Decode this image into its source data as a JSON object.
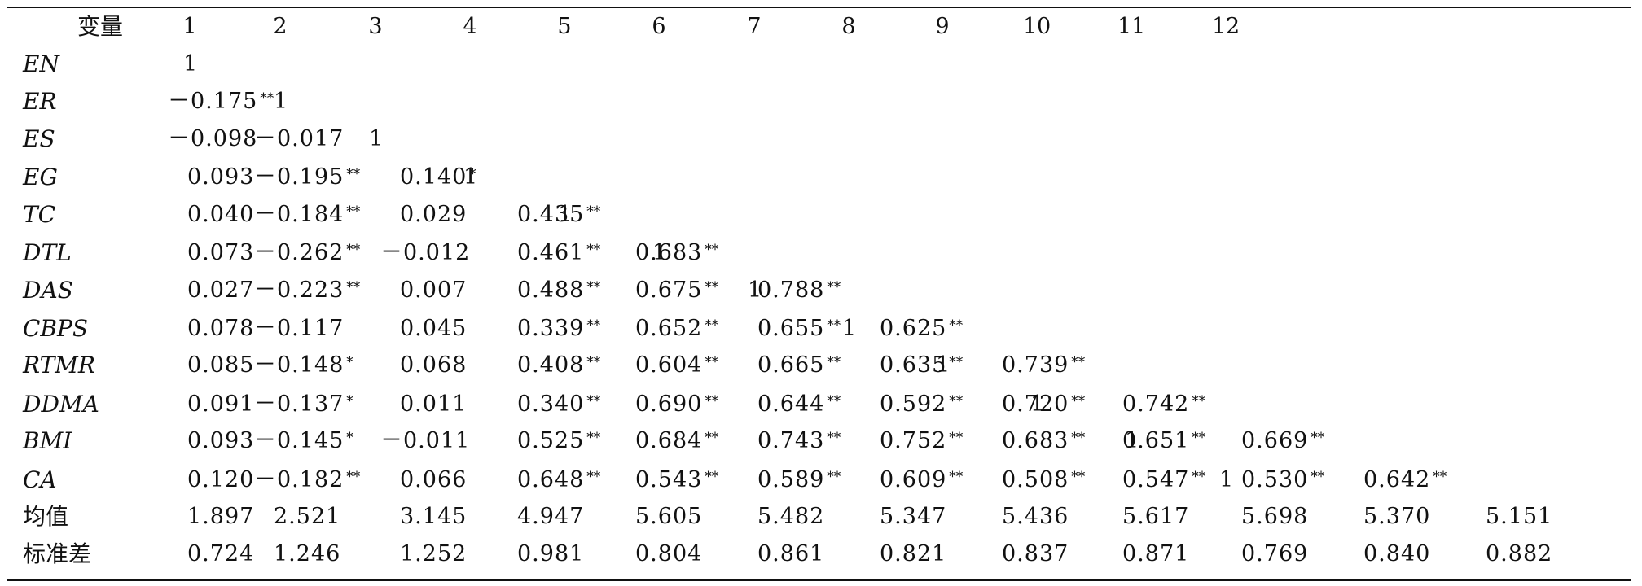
{
  "table": {
    "header": {
      "label": "变量",
      "columns": [
        "1",
        "2",
        "3",
        "4",
        "5",
        "6",
        "7",
        "8",
        "9",
        "10",
        "11",
        "12"
      ]
    },
    "rows": [
      {
        "label": "EN",
        "italic": true,
        "cells": [
          {
            "v": "1",
            "s": ""
          }
        ]
      },
      {
        "label": "ER",
        "italic": true,
        "cells": [
          {
            "v": "－0.175",
            "s": "**"
          },
          {
            "v": "1",
            "s": ""
          }
        ]
      },
      {
        "label": "ES",
        "italic": true,
        "cells": [
          {
            "v": "－0.098",
            "s": ""
          },
          {
            "v": "－0.017",
            "s": ""
          },
          {
            "v": "1",
            "s": ""
          }
        ]
      },
      {
        "label": "EG",
        "italic": true,
        "cells": [
          {
            "v": "0.093",
            "s": ""
          },
          {
            "v": "－0.195",
            "s": "**"
          },
          {
            "v": "0.140",
            "s": "*"
          },
          {
            "v": "1",
            "s": ""
          }
        ]
      },
      {
        "label": "TC",
        "italic": true,
        "cells": [
          {
            "v": "0.040",
            "s": ""
          },
          {
            "v": "－0.184",
            "s": "**"
          },
          {
            "v": "0.029",
            "s": ""
          },
          {
            "v": "0.435",
            "s": "**"
          },
          {
            "v": "1",
            "s": ""
          }
        ]
      },
      {
        "label": "DTL",
        "italic": true,
        "cells": [
          {
            "v": "0.073",
            "s": ""
          },
          {
            "v": "－0.262",
            "s": "**"
          },
          {
            "v": "－0.012",
            "s": ""
          },
          {
            "v": "0.461",
            "s": "**"
          },
          {
            "v": "0.683",
            "s": "**"
          },
          {
            "v": "1",
            "s": ""
          }
        ]
      },
      {
        "label": "DAS",
        "italic": true,
        "cells": [
          {
            "v": "0.027",
            "s": ""
          },
          {
            "v": "－0.223",
            "s": "**"
          },
          {
            "v": "0.007",
            "s": ""
          },
          {
            "v": "0.488",
            "s": "**"
          },
          {
            "v": "0.675",
            "s": "**"
          },
          {
            "v": "0.788",
            "s": "**"
          },
          {
            "v": "1",
            "s": ""
          }
        ]
      },
      {
        "label": "CBPS",
        "italic": true,
        "cells": [
          {
            "v": "0.078",
            "s": ""
          },
          {
            "v": "－0.117",
            "s": ""
          },
          {
            "v": "0.045",
            "s": ""
          },
          {
            "v": "0.339",
            "s": "**"
          },
          {
            "v": "0.652",
            "s": "**"
          },
          {
            "v": "0.655",
            "s": "**"
          },
          {
            "v": "0.625",
            "s": "**"
          },
          {
            "v": "1",
            "s": ""
          }
        ]
      },
      {
        "label": "RTMR",
        "italic": true,
        "cells": [
          {
            "v": "0.085",
            "s": ""
          },
          {
            "v": "－0.148",
            "s": "*"
          },
          {
            "v": "0.068",
            "s": ""
          },
          {
            "v": "0.408",
            "s": "**"
          },
          {
            "v": "0.604",
            "s": "**"
          },
          {
            "v": "0.665",
            "s": "**"
          },
          {
            "v": "0.635",
            "s": "**"
          },
          {
            "v": "0.739",
            "s": "**"
          },
          {
            "v": "1",
            "s": ""
          }
        ]
      },
      {
        "label": "DDMA",
        "italic": true,
        "cells": [
          {
            "v": "0.091",
            "s": ""
          },
          {
            "v": "－0.137",
            "s": "*"
          },
          {
            "v": "0.011",
            "s": ""
          },
          {
            "v": "0.340",
            "s": "**"
          },
          {
            "v": "0.690",
            "s": "**"
          },
          {
            "v": "0.644",
            "s": "**"
          },
          {
            "v": "0.592",
            "s": "**"
          },
          {
            "v": "0.720",
            "s": "**"
          },
          {
            "v": "0.742",
            "s": "**"
          },
          {
            "v": "1",
            "s": ""
          }
        ]
      },
      {
        "label": "BMI",
        "italic": true,
        "cells": [
          {
            "v": "0.093",
            "s": ""
          },
          {
            "v": "－0.145",
            "s": "*"
          },
          {
            "v": "－0.011",
            "s": ""
          },
          {
            "v": "0.525",
            "s": "**"
          },
          {
            "v": "0.684",
            "s": "**"
          },
          {
            "v": "0.743",
            "s": "**"
          },
          {
            "v": "0.752",
            "s": "**"
          },
          {
            "v": "0.683",
            "s": "**"
          },
          {
            "v": "0.651",
            "s": "**"
          },
          {
            "v": "0.669",
            "s": "**"
          },
          {
            "v": "1",
            "s": ""
          }
        ]
      },
      {
        "label": "CA",
        "italic": true,
        "cells": [
          {
            "v": "0.120",
            "s": ""
          },
          {
            "v": "－0.182",
            "s": "**"
          },
          {
            "v": "0.066",
            "s": ""
          },
          {
            "v": "0.648",
            "s": "**"
          },
          {
            "v": "0.543",
            "s": "**"
          },
          {
            "v": "0.589",
            "s": "**"
          },
          {
            "v": "0.609",
            "s": "**"
          },
          {
            "v": "0.508",
            "s": "**"
          },
          {
            "v": "0.547",
            "s": "**"
          },
          {
            "v": "0.530",
            "s": "**"
          },
          {
            "v": "0.642",
            "s": "**"
          },
          {
            "v": "1",
            "s": ""
          }
        ]
      },
      {
        "label": "均值",
        "italic": false,
        "cells": [
          {
            "v": "1.897",
            "s": ""
          },
          {
            "v": "2.521",
            "s": ""
          },
          {
            "v": "3.145",
            "s": ""
          },
          {
            "v": "4.947",
            "s": ""
          },
          {
            "v": "5.605",
            "s": ""
          },
          {
            "v": "5.482",
            "s": ""
          },
          {
            "v": "5.347",
            "s": ""
          },
          {
            "v": "5.436",
            "s": ""
          },
          {
            "v": "5.617",
            "s": ""
          },
          {
            "v": "5.698",
            "s": ""
          },
          {
            "v": "5.370",
            "s": ""
          },
          {
            "v": "5.151",
            "s": ""
          }
        ]
      },
      {
        "label": "标准差",
        "italic": false,
        "cells": [
          {
            "v": "0.724",
            "s": ""
          },
          {
            "v": "1.246",
            "s": ""
          },
          {
            "v": "1.252",
            "s": ""
          },
          {
            "v": "0.981",
            "s": ""
          },
          {
            "v": "0.804",
            "s": ""
          },
          {
            "v": "0.861",
            "s": ""
          },
          {
            "v": "0.821",
            "s": ""
          },
          {
            "v": "0.837",
            "s": ""
          },
          {
            "v": "0.871",
            "s": ""
          },
          {
            "v": "0.769",
            "s": ""
          },
          {
            "v": "0.840",
            "s": ""
          },
          {
            "v": "0.882",
            "s": ""
          }
        ]
      }
    ]
  }
}
